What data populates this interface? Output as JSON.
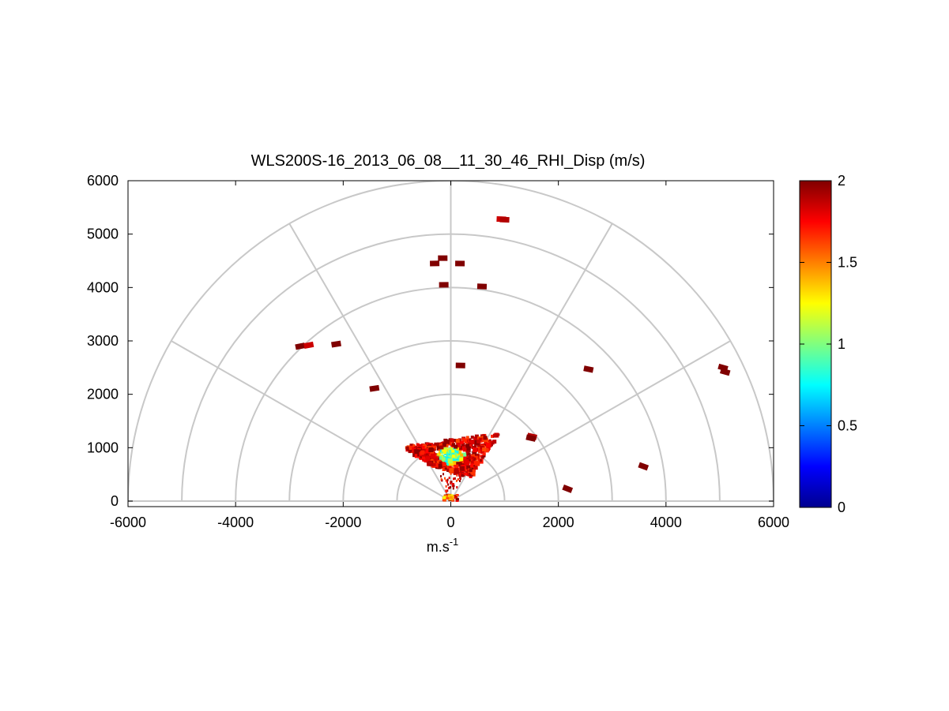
{
  "chart_data": [
    {
      "type": "scatter",
      "subtype": "polar-rhi-semicircle",
      "title": "WLS200S-16_2013_06_08__11_30_46_RHI_Disp (m/s)",
      "xlabel_base": "m.s",
      "xlabel_exp": "-1",
      "ylabel": "",
      "xlim": [
        -6000,
        6000
      ],
      "ylim": [
        0,
        6000
      ],
      "x_ticks": [
        -6000,
        -4000,
        -2000,
        0,
        2000,
        4000,
        6000
      ],
      "x_tick_labels": [
        "-6000",
        "-4000",
        "-2000",
        "0",
        "2000",
        "4000",
        "6000"
      ],
      "y_ticks": [
        0,
        1000,
        2000,
        3000,
        4000,
        5000,
        6000
      ],
      "y_tick_labels": [
        "0",
        "1000",
        "2000",
        "3000",
        "4000",
        "5000",
        "6000"
      ],
      "range_rings": [
        1000,
        2000,
        3000,
        4000,
        5000,
        6000
      ],
      "spoke_angles_deg": [
        0,
        30,
        60,
        90,
        120,
        150,
        180
      ],
      "grid": true,
      "colormap": "jet",
      "colorbar": {
        "min": 0,
        "max": 2,
        "ticks": [
          0,
          0.5,
          1,
          1.5,
          2
        ],
        "tick_labels": [
          "0",
          "0.5",
          "1",
          "1.5",
          "2"
        ],
        "placement": "right"
      },
      "points": [
        {
          "x": 940,
          "y": 5280,
          "v": 1.85
        },
        {
          "x": 1000,
          "y": 5270,
          "v": 1.9
        },
        {
          "x": -150,
          "y": 4550,
          "v": 2.0
        },
        {
          "x": -300,
          "y": 4450,
          "v": 2.0
        },
        {
          "x": 170,
          "y": 4450,
          "v": 2.0
        },
        {
          "x": -130,
          "y": 4050,
          "v": 2.0
        },
        {
          "x": 580,
          "y": 4020,
          "v": 2.0
        },
        {
          "x": -2800,
          "y": 2900,
          "v": 2.0
        },
        {
          "x": -2640,
          "y": 2920,
          "v": 1.85
        },
        {
          "x": -2130,
          "y": 2940,
          "v": 2.0
        },
        {
          "x": 180,
          "y": 2540,
          "v": 2.0
        },
        {
          "x": 2560,
          "y": 2470,
          "v": 2.0
        },
        {
          "x": 5060,
          "y": 2500,
          "v": 2.0
        },
        {
          "x": 5100,
          "y": 2420,
          "v": 2.0
        },
        {
          "x": -1420,
          "y": 2110,
          "v": 2.0
        },
        {
          "x": 3580,
          "y": 650,
          "v": 2.0
        },
        {
          "x": 2170,
          "y": 230,
          "v": 2.0
        },
        {
          "x": 1510,
          "y": 1210,
          "v": 1.9
        },
        {
          "x": 1490,
          "y": 1180,
          "v": 2.0
        }
      ],
      "near_field_cluster": {
        "center_x": 0,
        "center_y": 850,
        "x_range": [
          -1100,
          750
        ],
        "y_range": [
          450,
          1300
        ],
        "core_values_range": [
          0.7,
          1.4
        ],
        "edge_values_range": [
          1.6,
          2.0
        ]
      }
    }
  ]
}
